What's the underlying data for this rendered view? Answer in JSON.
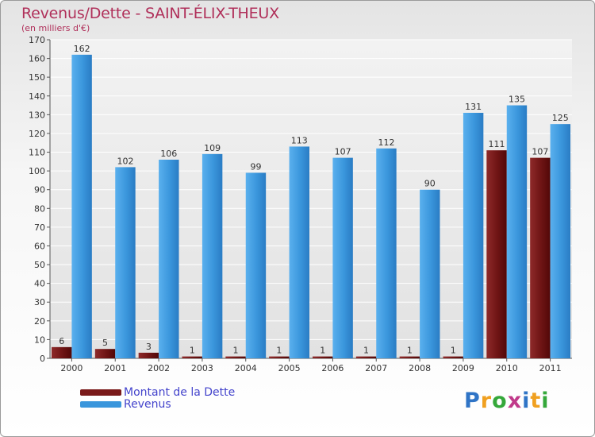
{
  "chart_data": {
    "type": "bar",
    "title": "Revenus/Dette - SAINT-ÉLIX-THEUX",
    "subtitle": "(en milliers d'€)",
    "categories": [
      "2000",
      "2001",
      "2002",
      "2003",
      "2004",
      "2005",
      "2006",
      "2007",
      "2008",
      "2009",
      "2010",
      "2011"
    ],
    "series": [
      {
        "name": "Montant de la Dette",
        "color": "#7a1a1a",
        "values": [
          6,
          5,
          3,
          1,
          1,
          1,
          1,
          1,
          1,
          1,
          111,
          107
        ]
      },
      {
        "name": "Revenus",
        "color": "#3a96dc",
        "values": [
          162,
          102,
          106,
          109,
          99,
          113,
          107,
          112,
          90,
          131,
          135,
          125
        ]
      }
    ],
    "ylim": [
      0,
      170
    ],
    "yticks": [
      0,
      10,
      20,
      30,
      40,
      50,
      60,
      70,
      80,
      90,
      100,
      110,
      120,
      130,
      140,
      150,
      160,
      170
    ],
    "grid": true,
    "legend": "bottom-left"
  },
  "logo": {
    "letters": [
      "P",
      "r",
      "o",
      "x",
      "i",
      "t",
      "i"
    ],
    "colors": [
      "#2f74c6",
      "#f0a020",
      "#35a83a",
      "#c03a8a",
      "#2f74c6",
      "#f0a020",
      "#35a83a"
    ]
  }
}
